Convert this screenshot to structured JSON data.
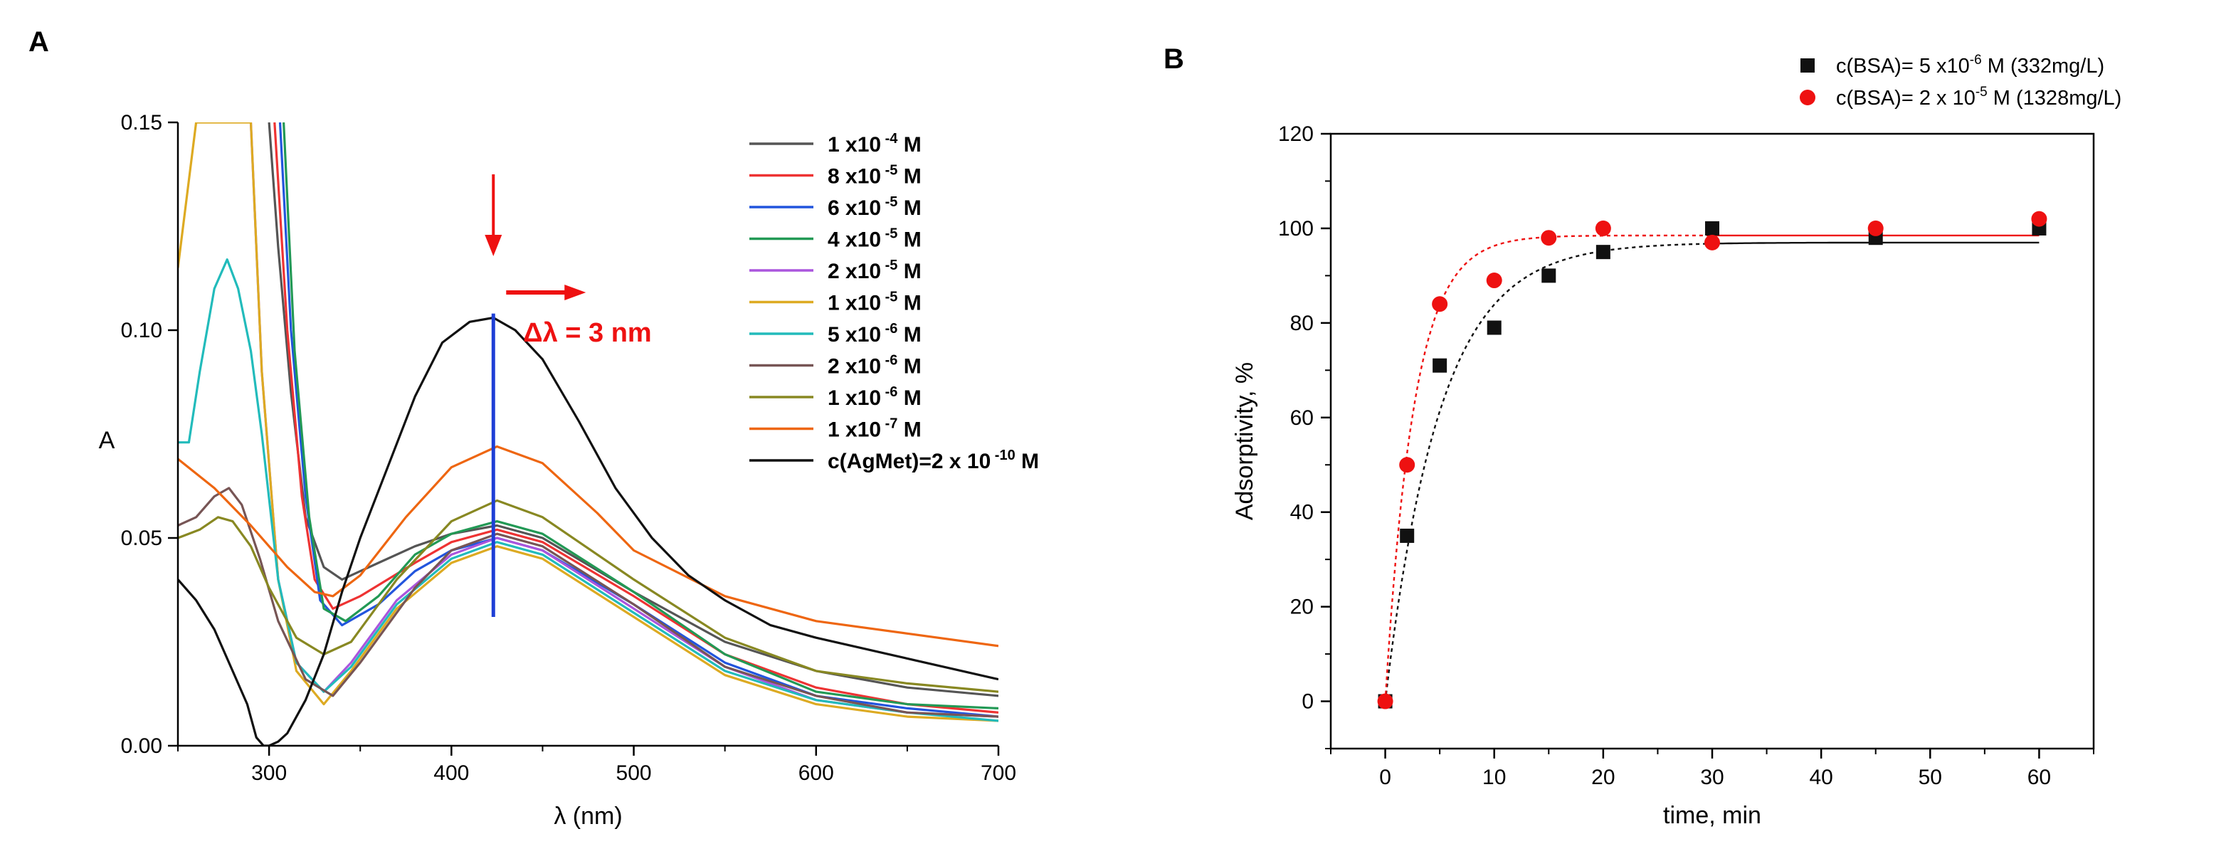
{
  "chart_data": [
    {
      "panel": "A",
      "type": "line",
      "xlabel": "λ (nm)",
      "ylabel": "A",
      "xlim": [
        250,
        700
      ],
      "ylim": [
        0,
        0.15
      ],
      "xticks": [
        "300",
        "400",
        "500",
        "600",
        "700"
      ],
      "yticks": [
        "0.00",
        "0.05",
        "0.10",
        "0.15"
      ],
      "legend_placement": "top-right",
      "annotation": {
        "text": "Δλ = 3 nm",
        "vertical_marker_x": 423,
        "vertical_marker_range": [
          0.031,
          0.104
        ]
      },
      "series": [
        {
          "name": "1 x10 -4 M",
          "base": "1 x10",
          "exp": "-4",
          "unit": " M",
          "color": "#555555",
          "points": [
            [
              300,
              0.15
            ],
            [
              305,
              0.12
            ],
            [
              312,
              0.085
            ],
            [
              320,
              0.055
            ],
            [
              330,
              0.043
            ],
            [
              340,
              0.04
            ],
            [
              360,
              0.044
            ],
            [
              380,
              0.048
            ],
            [
              400,
              0.051
            ],
            [
              425,
              0.053
            ],
            [
              450,
              0.05
            ],
            [
              500,
              0.037
            ],
            [
              550,
              0.025
            ],
            [
              600,
              0.018
            ],
            [
              650,
              0.014
            ],
            [
              700,
              0.012
            ]
          ]
        },
        {
          "name": "8 x10 -5 M",
          "base": "8 x10",
          "exp": "-5",
          "unit": " M",
          "color": "#ee3333",
          "points": [
            [
              303,
              0.15
            ],
            [
              310,
              0.1
            ],
            [
              318,
              0.06
            ],
            [
              325,
              0.04
            ],
            [
              335,
              0.033
            ],
            [
              350,
              0.036
            ],
            [
              380,
              0.044
            ],
            [
              400,
              0.049
            ],
            [
              425,
              0.052
            ],
            [
              450,
              0.049
            ],
            [
              500,
              0.036
            ],
            [
              550,
              0.022
            ],
            [
              600,
              0.014
            ],
            [
              650,
              0.01
            ],
            [
              700,
              0.008
            ]
          ]
        },
        {
          "name": "6 x10 -5 M",
          "base": "6 x10",
          "exp": "-5",
          "unit": " M",
          "color": "#2255dd",
          "points": [
            [
              306,
              0.15
            ],
            [
              312,
              0.1
            ],
            [
              320,
              0.06
            ],
            [
              328,
              0.035
            ],
            [
              340,
              0.029
            ],
            [
              360,
              0.034
            ],
            [
              380,
              0.042
            ],
            [
              400,
              0.047
            ],
            [
              425,
              0.05
            ],
            [
              450,
              0.047
            ],
            [
              500,
              0.034
            ],
            [
              550,
              0.02
            ],
            [
              600,
              0.012
            ],
            [
              650,
              0.009
            ],
            [
              700,
              0.007
            ]
          ]
        },
        {
          "name": "4 x10 -5 M",
          "base": "4 x10",
          "exp": "-5",
          "unit": " M",
          "color": "#229955",
          "points": [
            [
              308,
              0.15
            ],
            [
              314,
              0.095
            ],
            [
              322,
              0.055
            ],
            [
              330,
              0.033
            ],
            [
              342,
              0.03
            ],
            [
              360,
              0.036
            ],
            [
              380,
              0.046
            ],
            [
              400,
              0.051
            ],
            [
              425,
              0.054
            ],
            [
              450,
              0.051
            ],
            [
              500,
              0.037
            ],
            [
              550,
              0.022
            ],
            [
              600,
              0.013
            ],
            [
              650,
              0.01
            ],
            [
              700,
              0.009
            ]
          ]
        },
        {
          "name": "2 x10 -5 M",
          "base": "2 x10",
          "exp": "-5",
          "unit": " M",
          "color": "#aa55dd",
          "points": [
            [
              290,
              0.15
            ],
            [
              296,
              0.09
            ],
            [
              305,
              0.04
            ],
            [
              315,
              0.02
            ],
            [
              330,
              0.013
            ],
            [
              345,
              0.02
            ],
            [
              370,
              0.035
            ],
            [
              400,
              0.046
            ],
            [
              425,
              0.05
            ],
            [
              450,
              0.047
            ],
            [
              500,
              0.033
            ],
            [
              550,
              0.019
            ],
            [
              600,
              0.011
            ],
            [
              650,
              0.008
            ],
            [
              700,
              0.007
            ]
          ]
        },
        {
          "name": "1 x10 -5 M",
          "base": "1 x10",
          "exp": "-5",
          "unit": " M",
          "color": "#ddaa22",
          "points": [
            [
              250,
              0.115
            ],
            [
              260,
              0.15
            ],
            [
              266,
              0.15
            ],
            [
              272,
              0.15
            ],
            [
              280,
              0.15
            ],
            [
              285,
              0.15
            ],
            [
              290,
              0.15
            ],
            [
              296,
              0.09
            ],
            [
              305,
              0.04
            ],
            [
              315,
              0.018
            ],
            [
              330,
              0.01
            ],
            [
              345,
              0.018
            ],
            [
              370,
              0.033
            ],
            [
              400,
              0.044
            ],
            [
              425,
              0.048
            ],
            [
              450,
              0.045
            ],
            [
              500,
              0.031
            ],
            [
              550,
              0.017
            ],
            [
              600,
              0.01
            ],
            [
              650,
              0.007
            ],
            [
              700,
              0.006
            ]
          ]
        },
        {
          "name": "5 x10 -6 M",
          "base": "5 x10",
          "exp": "-6",
          "unit": " M",
          "color": "#22bbbb",
          "points": [
            [
              250,
              0.073
            ],
            [
              256,
              0.073
            ],
            [
              262,
              0.09
            ],
            [
              270,
              0.11
            ],
            [
              277,
              0.117
            ],
            [
              283,
              0.11
            ],
            [
              290,
              0.095
            ],
            [
              296,
              0.075
            ],
            [
              305,
              0.04
            ],
            [
              315,
              0.02
            ],
            [
              330,
              0.013
            ],
            [
              345,
              0.019
            ],
            [
              370,
              0.034
            ],
            [
              400,
              0.045
            ],
            [
              425,
              0.049
            ],
            [
              450,
              0.046
            ],
            [
              500,
              0.032
            ],
            [
              550,
              0.018
            ],
            [
              600,
              0.011
            ],
            [
              650,
              0.008
            ],
            [
              700,
              0.006
            ]
          ]
        },
        {
          "name": "2 x10 -6 M",
          "base": "2 x10",
          "exp": "-6",
          "unit": " M",
          "color": "#775555",
          "points": [
            [
              250,
              0.053
            ],
            [
              260,
              0.055
            ],
            [
              270,
              0.06
            ],
            [
              278,
              0.062
            ],
            [
              285,
              0.058
            ],
            [
              295,
              0.045
            ],
            [
              305,
              0.03
            ],
            [
              320,
              0.016
            ],
            [
              335,
              0.012
            ],
            [
              350,
              0.02
            ],
            [
              380,
              0.038
            ],
            [
              400,
              0.047
            ],
            [
              425,
              0.051
            ],
            [
              450,
              0.048
            ],
            [
              500,
              0.034
            ],
            [
              550,
              0.019
            ],
            [
              600,
              0.012
            ],
            [
              650,
              0.008
            ],
            [
              700,
              0.007
            ]
          ]
        },
        {
          "name": "1 x10 -6 M",
          "base": "1 x10",
          "exp": "-6",
          "unit": " M",
          "color": "#888822",
          "points": [
            [
              250,
              0.05
            ],
            [
              262,
              0.052
            ],
            [
              272,
              0.055
            ],
            [
              280,
              0.054
            ],
            [
              290,
              0.048
            ],
            [
              300,
              0.038
            ],
            [
              315,
              0.026
            ],
            [
              330,
              0.022
            ],
            [
              345,
              0.025
            ],
            [
              370,
              0.04
            ],
            [
              400,
              0.054
            ],
            [
              425,
              0.059
            ],
            [
              450,
              0.055
            ],
            [
              500,
              0.04
            ],
            [
              550,
              0.026
            ],
            [
              600,
              0.018
            ],
            [
              650,
              0.015
            ],
            [
              700,
              0.013
            ]
          ]
        },
        {
          "name": "1 x10 -7 M",
          "base": "1 x10",
          "exp": "-7",
          "unit": " M",
          "color": "#ee6611",
          "points": [
            [
              250,
              0.069
            ],
            [
              270,
              0.062
            ],
            [
              290,
              0.053
            ],
            [
              310,
              0.043
            ],
            [
              325,
              0.037
            ],
            [
              335,
              0.036
            ],
            [
              350,
              0.041
            ],
            [
              375,
              0.055
            ],
            [
              400,
              0.067
            ],
            [
              425,
              0.072
            ],
            [
              450,
              0.068
            ],
            [
              480,
              0.056
            ],
            [
              500,
              0.047
            ],
            [
              550,
              0.036
            ],
            [
              600,
              0.03
            ],
            [
              650,
              0.027
            ],
            [
              700,
              0.024
            ]
          ]
        },
        {
          "name": "c(AgMet)=2 x 10 -10 M",
          "base": "c(AgMet)=2 x 10",
          "exp": "-10",
          "unit": " M",
          "color": "#111111",
          "points": [
            [
              250,
              0.04
            ],
            [
              260,
              0.035
            ],
            [
              270,
              0.028
            ],
            [
              280,
              0.018
            ],
            [
              288,
              0.01
            ],
            [
              293,
              0.002
            ],
            [
              297,
              0.0
            ],
            [
              300,
              0.0
            ],
            [
              305,
              0.001
            ],
            [
              310,
              0.003
            ],
            [
              320,
              0.011
            ],
            [
              330,
              0.022
            ],
            [
              340,
              0.037
            ],
            [
              350,
              0.05
            ],
            [
              365,
              0.067
            ],
            [
              380,
              0.084
            ],
            [
              395,
              0.097
            ],
            [
              410,
              0.102
            ],
            [
              423,
              0.103
            ],
            [
              435,
              0.1
            ],
            [
              450,
              0.093
            ],
            [
              470,
              0.078
            ],
            [
              490,
              0.062
            ],
            [
              510,
              0.05
            ],
            [
              530,
              0.041
            ],
            [
              550,
              0.035
            ],
            [
              575,
              0.029
            ],
            [
              600,
              0.026
            ],
            [
              650,
              0.021
            ],
            [
              700,
              0.016
            ]
          ]
        }
      ]
    },
    {
      "panel": "B",
      "type": "scatter",
      "xlabel": "time, min",
      "ylabel": "Adsorptivity, %",
      "xlim": [
        -5,
        65
      ],
      "ylim": [
        -10,
        120
      ],
      "xticks": [
        "0",
        "10",
        "20",
        "30",
        "40",
        "50",
        "60"
      ],
      "yticks": [
        "0",
        "20",
        "40",
        "60",
        "80",
        "100",
        "120"
      ],
      "legend_placement": "top-right",
      "series": [
        {
          "name": "c(BSA)= 5 x10-6 M (332mg/L)",
          "pre": "c(BSA)= 5 x10",
          "exp": "-6",
          "post": " M (332mg/L)",
          "color": "#111111",
          "marker": "square",
          "x": [
            0,
            2,
            5,
            10,
            15,
            20,
            30,
            45,
            60
          ],
          "y": [
            0,
            35,
            71,
            79,
            90,
            95,
            100,
            98,
            100
          ],
          "fit_plateau": 97,
          "fit_k": 0.2
        },
        {
          "name": "c(BSA)= 2 x 10-5 M (1328mg/L)",
          "pre": "c(BSA)= 2 x 10",
          "exp": "-5",
          "post": " M (1328mg/L)",
          "color": "#ee1111",
          "marker": "circle",
          "x": [
            0,
            2,
            5,
            10,
            15,
            20,
            30,
            45,
            60
          ],
          "y": [
            0,
            50,
            84,
            89,
            98,
            100,
            97,
            100,
            102
          ],
          "fit_plateau": 98.5,
          "fit_k": 0.38
        }
      ]
    }
  ]
}
